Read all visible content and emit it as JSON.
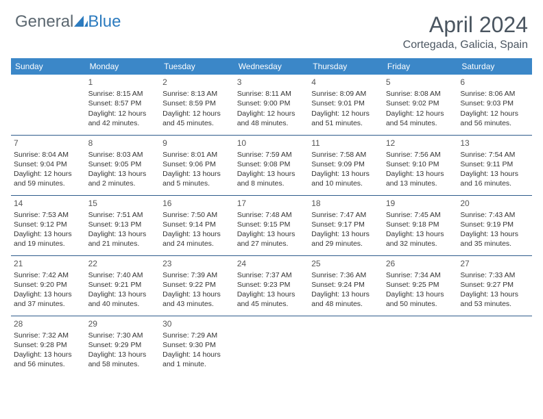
{
  "brand": {
    "part1": "General",
    "part2": "Blue"
  },
  "title": "April 2024",
  "location": "Cortegada, Galicia, Spain",
  "colors": {
    "header_bg": "#3b87c8",
    "header_text": "#ffffff",
    "divider": "#2c5a8a",
    "title_color": "#4a5560",
    "brand_gray": "#5b6770",
    "brand_blue": "#2c7bbf",
    "body_text": "#333333",
    "background": "#ffffff"
  },
  "day_headers": [
    "Sunday",
    "Monday",
    "Tuesday",
    "Wednesday",
    "Thursday",
    "Friday",
    "Saturday"
  ],
  "weeks": [
    [
      {
        "day": "",
        "lines": []
      },
      {
        "day": "1",
        "lines": [
          "Sunrise: 8:15 AM",
          "Sunset: 8:57 PM",
          "Daylight: 12 hours and 42 minutes."
        ]
      },
      {
        "day": "2",
        "lines": [
          "Sunrise: 8:13 AM",
          "Sunset: 8:59 PM",
          "Daylight: 12 hours and 45 minutes."
        ]
      },
      {
        "day": "3",
        "lines": [
          "Sunrise: 8:11 AM",
          "Sunset: 9:00 PM",
          "Daylight: 12 hours and 48 minutes."
        ]
      },
      {
        "day": "4",
        "lines": [
          "Sunrise: 8:09 AM",
          "Sunset: 9:01 PM",
          "Daylight: 12 hours and 51 minutes."
        ]
      },
      {
        "day": "5",
        "lines": [
          "Sunrise: 8:08 AM",
          "Sunset: 9:02 PM",
          "Daylight: 12 hours and 54 minutes."
        ]
      },
      {
        "day": "6",
        "lines": [
          "Sunrise: 8:06 AM",
          "Sunset: 9:03 PM",
          "Daylight: 12 hours and 56 minutes."
        ]
      }
    ],
    [
      {
        "day": "7",
        "lines": [
          "Sunrise: 8:04 AM",
          "Sunset: 9:04 PM",
          "Daylight: 12 hours and 59 minutes."
        ]
      },
      {
        "day": "8",
        "lines": [
          "Sunrise: 8:03 AM",
          "Sunset: 9:05 PM",
          "Daylight: 13 hours and 2 minutes."
        ]
      },
      {
        "day": "9",
        "lines": [
          "Sunrise: 8:01 AM",
          "Sunset: 9:06 PM",
          "Daylight: 13 hours and 5 minutes."
        ]
      },
      {
        "day": "10",
        "lines": [
          "Sunrise: 7:59 AM",
          "Sunset: 9:08 PM",
          "Daylight: 13 hours and 8 minutes."
        ]
      },
      {
        "day": "11",
        "lines": [
          "Sunrise: 7:58 AM",
          "Sunset: 9:09 PM",
          "Daylight: 13 hours and 10 minutes."
        ]
      },
      {
        "day": "12",
        "lines": [
          "Sunrise: 7:56 AM",
          "Sunset: 9:10 PM",
          "Daylight: 13 hours and 13 minutes."
        ]
      },
      {
        "day": "13",
        "lines": [
          "Sunrise: 7:54 AM",
          "Sunset: 9:11 PM",
          "Daylight: 13 hours and 16 minutes."
        ]
      }
    ],
    [
      {
        "day": "14",
        "lines": [
          "Sunrise: 7:53 AM",
          "Sunset: 9:12 PM",
          "Daylight: 13 hours and 19 minutes."
        ]
      },
      {
        "day": "15",
        "lines": [
          "Sunrise: 7:51 AM",
          "Sunset: 9:13 PM",
          "Daylight: 13 hours and 21 minutes."
        ]
      },
      {
        "day": "16",
        "lines": [
          "Sunrise: 7:50 AM",
          "Sunset: 9:14 PM",
          "Daylight: 13 hours and 24 minutes."
        ]
      },
      {
        "day": "17",
        "lines": [
          "Sunrise: 7:48 AM",
          "Sunset: 9:15 PM",
          "Daylight: 13 hours and 27 minutes."
        ]
      },
      {
        "day": "18",
        "lines": [
          "Sunrise: 7:47 AM",
          "Sunset: 9:17 PM",
          "Daylight: 13 hours and 29 minutes."
        ]
      },
      {
        "day": "19",
        "lines": [
          "Sunrise: 7:45 AM",
          "Sunset: 9:18 PM",
          "Daylight: 13 hours and 32 minutes."
        ]
      },
      {
        "day": "20",
        "lines": [
          "Sunrise: 7:43 AM",
          "Sunset: 9:19 PM",
          "Daylight: 13 hours and 35 minutes."
        ]
      }
    ],
    [
      {
        "day": "21",
        "lines": [
          "Sunrise: 7:42 AM",
          "Sunset: 9:20 PM",
          "Daylight: 13 hours and 37 minutes."
        ]
      },
      {
        "day": "22",
        "lines": [
          "Sunrise: 7:40 AM",
          "Sunset: 9:21 PM",
          "Daylight: 13 hours and 40 minutes."
        ]
      },
      {
        "day": "23",
        "lines": [
          "Sunrise: 7:39 AM",
          "Sunset: 9:22 PM",
          "Daylight: 13 hours and 43 minutes."
        ]
      },
      {
        "day": "24",
        "lines": [
          "Sunrise: 7:37 AM",
          "Sunset: 9:23 PM",
          "Daylight: 13 hours and 45 minutes."
        ]
      },
      {
        "day": "25",
        "lines": [
          "Sunrise: 7:36 AM",
          "Sunset: 9:24 PM",
          "Daylight: 13 hours and 48 minutes."
        ]
      },
      {
        "day": "26",
        "lines": [
          "Sunrise: 7:34 AM",
          "Sunset: 9:25 PM",
          "Daylight: 13 hours and 50 minutes."
        ]
      },
      {
        "day": "27",
        "lines": [
          "Sunrise: 7:33 AM",
          "Sunset: 9:27 PM",
          "Daylight: 13 hours and 53 minutes."
        ]
      }
    ],
    [
      {
        "day": "28",
        "lines": [
          "Sunrise: 7:32 AM",
          "Sunset: 9:28 PM",
          "Daylight: 13 hours and 56 minutes."
        ]
      },
      {
        "day": "29",
        "lines": [
          "Sunrise: 7:30 AM",
          "Sunset: 9:29 PM",
          "Daylight: 13 hours and 58 minutes."
        ]
      },
      {
        "day": "30",
        "lines": [
          "Sunrise: 7:29 AM",
          "Sunset: 9:30 PM",
          "Daylight: 14 hours and 1 minute."
        ]
      },
      {
        "day": "",
        "lines": []
      },
      {
        "day": "",
        "lines": []
      },
      {
        "day": "",
        "lines": []
      },
      {
        "day": "",
        "lines": []
      }
    ]
  ]
}
